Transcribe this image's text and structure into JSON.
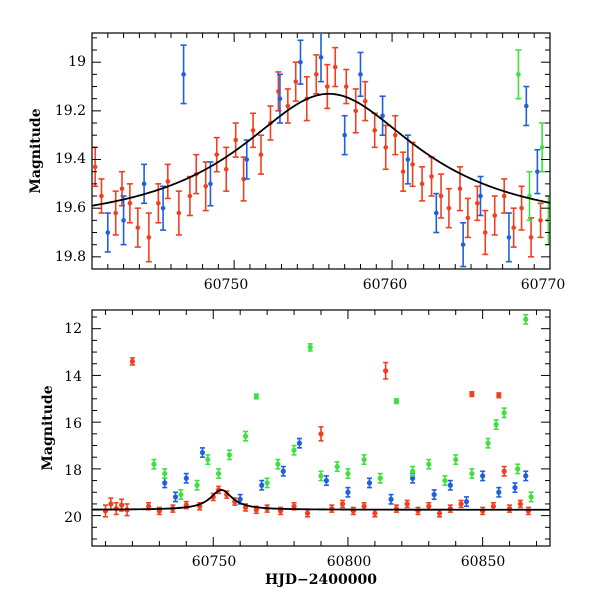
{
  "chart_data": [
    {
      "type": "scatter",
      "panel": "top",
      "title": "",
      "xlabel": "",
      "ylabel": "Magnitude",
      "xlim": [
        60741,
        60770
      ],
      "ylim": [
        19.85,
        18.88
      ],
      "y_inverted": true,
      "x_ticks": [
        60750,
        60760,
        60770
      ],
      "y_ticks": [
        19,
        19.2,
        19.4,
        19.6,
        19.8
      ],
      "x_tick_labels": [
        "60750",
        "60760",
        "60770"
      ],
      "y_tick_labels": [
        "19",
        "19.2",
        "19.4",
        "19.6",
        "19.8"
      ],
      "grid": false,
      "legend": "none",
      "model": {
        "type": "lorentzian",
        "t0": 60756,
        "peak_mag": 19.13,
        "base_mag": 19.69,
        "width": 7,
        "color": "#000000"
      },
      "series": [
        {
          "color": "#f04020",
          "points": [
            [
              60741.2,
              19.43,
              0.08
            ],
            [
              60741.6,
              19.55,
              0.07
            ],
            [
              60742.5,
              19.62,
              0.09
            ],
            [
              60742.9,
              19.52,
              0.07
            ],
            [
              60743.4,
              19.58,
              0.08
            ],
            [
              60743.9,
              19.68,
              0.08
            ],
            [
              60744.6,
              19.72,
              0.1
            ],
            [
              60745.2,
              19.58,
              0.08
            ],
            [
              60745.8,
              19.49,
              0.07
            ],
            [
              60746.5,
              19.62,
              0.09
            ],
            [
              60747.2,
              19.55,
              0.08
            ],
            [
              60747.6,
              19.46,
              0.08
            ],
            [
              60748.2,
              19.51,
              0.1
            ],
            [
              60748.9,
              19.38,
              0.07
            ],
            [
              60749.5,
              19.44,
              0.09
            ],
            [
              60750.1,
              19.32,
              0.07
            ],
            [
              60750.6,
              19.48,
              0.09
            ],
            [
              60751.2,
              19.28,
              0.07
            ],
            [
              60751.7,
              19.38,
              0.08
            ],
            [
              60752.3,
              19.25,
              0.07
            ],
            [
              60752.8,
              19.12,
              0.08
            ],
            [
              60753.4,
              19.18,
              0.07
            ],
            [
              60753.9,
              19.08,
              0.08
            ],
            [
              60754.6,
              19.15,
              0.09
            ],
            [
              60755.2,
              19.05,
              0.08
            ],
            [
              60755.9,
              19.1,
              0.09
            ],
            [
              60756.4,
              19.02,
              0.08
            ],
            [
              60757.1,
              19.1,
              0.07
            ],
            [
              60757.7,
              19.2,
              0.09
            ],
            [
              60758.3,
              19.16,
              0.08
            ],
            [
              60758.9,
              19.28,
              0.07
            ],
            [
              60759.6,
              19.35,
              0.09
            ],
            [
              60760.2,
              19.3,
              0.08
            ],
            [
              60760.7,
              19.45,
              0.08
            ],
            [
              60761.3,
              19.42,
              0.09
            ],
            [
              60761.9,
              19.5,
              0.07
            ],
            [
              60762.5,
              19.47,
              0.08
            ],
            [
              60763.1,
              19.55,
              0.09
            ],
            [
              60763.6,
              19.6,
              0.08
            ],
            [
              60764.3,
              19.52,
              0.09
            ],
            [
              60764.8,
              19.64,
              0.08
            ],
            [
              60765.4,
              19.58,
              0.07
            ],
            [
              60765.9,
              19.7,
              0.09
            ],
            [
              60766.5,
              19.63,
              0.08
            ],
            [
              60767.1,
              19.55,
              0.07
            ],
            [
              60767.7,
              19.68,
              0.08
            ],
            [
              60768.2,
              19.6,
              0.09
            ],
            [
              60768.8,
              19.72,
              0.08
            ],
            [
              60769.4,
              19.65,
              0.07
            ]
          ]
        },
        {
          "color": "#2060e0",
          "points": [
            [
              60742.0,
              19.7,
              0.08
            ],
            [
              60743.0,
              19.65,
              0.1
            ],
            [
              60744.3,
              19.5,
              0.08
            ],
            [
              60745.5,
              19.6,
              0.09
            ],
            [
              60746.8,
              19.05,
              0.12
            ],
            [
              60748.5,
              19.5,
              0.09
            ],
            [
              60750.8,
              19.4,
              0.08
            ],
            [
              60752.9,
              19.15,
              0.1
            ],
            [
              60754.2,
              19.0,
              0.09
            ],
            [
              60755.5,
              18.98,
              0.1
            ],
            [
              60757.0,
              19.3,
              0.08
            ],
            [
              60758.0,
              19.05,
              0.09
            ],
            [
              60759.4,
              19.22,
              0.08
            ],
            [
              60761.0,
              19.4,
              0.1
            ],
            [
              60762.8,
              19.62,
              0.08
            ],
            [
              60764.5,
              19.75,
              0.09
            ],
            [
              60765.6,
              19.55,
              0.08
            ],
            [
              60767.4,
              19.72,
              0.1
            ],
            [
              60768.5,
              19.18,
              0.08
            ],
            [
              60769.2,
              19.45,
              0.09
            ]
          ]
        },
        {
          "color": "#40e040",
          "points": [
            [
              60768.0,
              19.05,
              0.1
            ],
            [
              60768.7,
              19.55,
              0.1
            ],
            [
              60769.5,
              19.35,
              0.1
            ],
            [
              60769.9,
              19.65,
              0.1
            ]
          ]
        }
      ]
    },
    {
      "type": "scatter",
      "panel": "bottom",
      "title": "",
      "xlabel": "HJD−2400000",
      "ylabel": "Magnitude",
      "xlim": [
        60705,
        60875
      ],
      "ylim": [
        21.3,
        11.2
      ],
      "y_inverted": true,
      "x_ticks": [
        60750,
        60800,
        60850
      ],
      "y_ticks": [
        12,
        14,
        16,
        18,
        20
      ],
      "x_tick_labels": [
        "60750",
        "60800",
        "60850"
      ],
      "y_tick_labels": [
        "12",
        "14",
        "16",
        "18",
        "20"
      ],
      "grid": false,
      "legend": "none",
      "model": {
        "type": "lorentzian",
        "t0": 60753,
        "peak_mag": 18.9,
        "base_mag": 19.75,
        "width": 5,
        "color": "#000000"
      },
      "series": [
        {
          "color": "#f04020",
          "points": [
            [
              60710,
              19.8,
              0.25
            ],
            [
              60712,
              19.5,
              0.25
            ],
            [
              60714,
              19.7,
              0.25
            ],
            [
              60716,
              19.55,
              0.25
            ],
            [
              60718,
              19.75,
              0.25
            ],
            [
              60720,
              13.4,
              0.15
            ],
            [
              60726,
              19.6,
              0.15
            ],
            [
              60730,
              19.8,
              0.15
            ],
            [
              60735,
              19.7,
              0.15
            ],
            [
              60740,
              19.55,
              0.15
            ],
            [
              60745,
              19.6,
              0.15
            ],
            [
              60750,
              19.2,
              0.15
            ],
            [
              60752,
              18.9,
              0.15
            ],
            [
              60755,
              19.1,
              0.15
            ],
            [
              60758,
              19.4,
              0.15
            ],
            [
              60762,
              19.65,
              0.15
            ],
            [
              60766,
              19.75,
              0.15
            ],
            [
              60770,
              19.7,
              0.15
            ],
            [
              60775,
              19.8,
              0.15
            ],
            [
              60780,
              19.6,
              0.15
            ],
            [
              60785,
              19.9,
              0.15
            ],
            [
              60790,
              16.5,
              0.3
            ],
            [
              60794,
              19.7,
              0.15
            ],
            [
              60798,
              19.5,
              0.15
            ],
            [
              60802,
              19.8,
              0.15
            ],
            [
              60806,
              19.6,
              0.15
            ],
            [
              60810,
              19.9,
              0.15
            ],
            [
              60814,
              13.8,
              0.35
            ],
            [
              60818,
              19.7,
              0.15
            ],
            [
              60822,
              19.5,
              0.15
            ],
            [
              60826,
              19.8,
              0.15
            ],
            [
              60830,
              19.6,
              0.15
            ],
            [
              60834,
              19.9,
              0.15
            ],
            [
              60838,
              19.7,
              0.15
            ],
            [
              60842,
              19.5,
              0.15
            ],
            [
              60846,
              14.8,
              0.1
            ],
            [
              60850,
              19.8,
              0.15
            ],
            [
              60854,
              19.6,
              0.15
            ],
            [
              60856,
              14.85,
              0.1
            ],
            [
              60858,
              18.1,
              0.2
            ],
            [
              60860,
              19.7,
              0.15
            ],
            [
              60864,
              19.5,
              0.15
            ],
            [
              60867,
              19.8,
              0.15
            ]
          ]
        },
        {
          "color": "#2060e0",
          "points": [
            [
              60732,
              18.6,
              0.2
            ],
            [
              60736,
              19.2,
              0.2
            ],
            [
              60740,
              18.4,
              0.2
            ],
            [
              60746,
              17.3,
              0.2
            ],
            [
              60760,
              19.3,
              0.2
            ],
            [
              60768,
              18.7,
              0.2
            ],
            [
              60776,
              18.1,
              0.2
            ],
            [
              60782,
              16.9,
              0.2
            ],
            [
              60792,
              18.5,
              0.2
            ],
            [
              60800,
              19.0,
              0.2
            ],
            [
              60808,
              18.6,
              0.2
            ],
            [
              60816,
              19.3,
              0.2
            ],
            [
              60824,
              18.4,
              0.2
            ],
            [
              60832,
              19.1,
              0.2
            ],
            [
              60838,
              18.7,
              0.2
            ],
            [
              60844,
              19.4,
              0.2
            ],
            [
              60850,
              18.3,
              0.2
            ],
            [
              60856,
              19.0,
              0.2
            ],
            [
              60862,
              18.8,
              0.2
            ],
            [
              60866,
              18.3,
              0.2
            ]
          ]
        },
        {
          "color": "#40e040",
          "points": [
            [
              60728,
              17.8,
              0.2
            ],
            [
              60732,
              18.2,
              0.2
            ],
            [
              60738,
              19.1,
              0.2
            ],
            [
              60744,
              18.7,
              0.2
            ],
            [
              60748,
              17.6,
              0.2
            ],
            [
              60752,
              18.2,
              0.2
            ],
            [
              60756,
              17.4,
              0.2
            ],
            [
              60762,
              16.6,
              0.2
            ],
            [
              60766,
              14.9,
              0.1
            ],
            [
              60770,
              18.6,
              0.2
            ],
            [
              60774,
              17.8,
              0.2
            ],
            [
              60780,
              17.2,
              0.2
            ],
            [
              60786,
              12.8,
              0.15
            ],
            [
              60790,
              18.3,
              0.2
            ],
            [
              60796,
              17.9,
              0.2
            ],
            [
              60800,
              18.2,
              0.2
            ],
            [
              60806,
              17.6,
              0.2
            ],
            [
              60812,
              18.4,
              0.2
            ],
            [
              60818,
              15.1,
              0.1
            ],
            [
              60824,
              18.1,
              0.2
            ],
            [
              60830,
              17.8,
              0.2
            ],
            [
              60836,
              18.5,
              0.2
            ],
            [
              60840,
              17.6,
              0.2
            ],
            [
              60846,
              18.2,
              0.2
            ],
            [
              60852,
              16.9,
              0.2
            ],
            [
              60855,
              16.1,
              0.2
            ],
            [
              60858,
              15.6,
              0.2
            ],
            [
              60863,
              18.0,
              0.2
            ],
            [
              60866,
              11.6,
              0.2
            ],
            [
              60868,
              19.2,
              0.2
            ]
          ]
        }
      ]
    }
  ]
}
